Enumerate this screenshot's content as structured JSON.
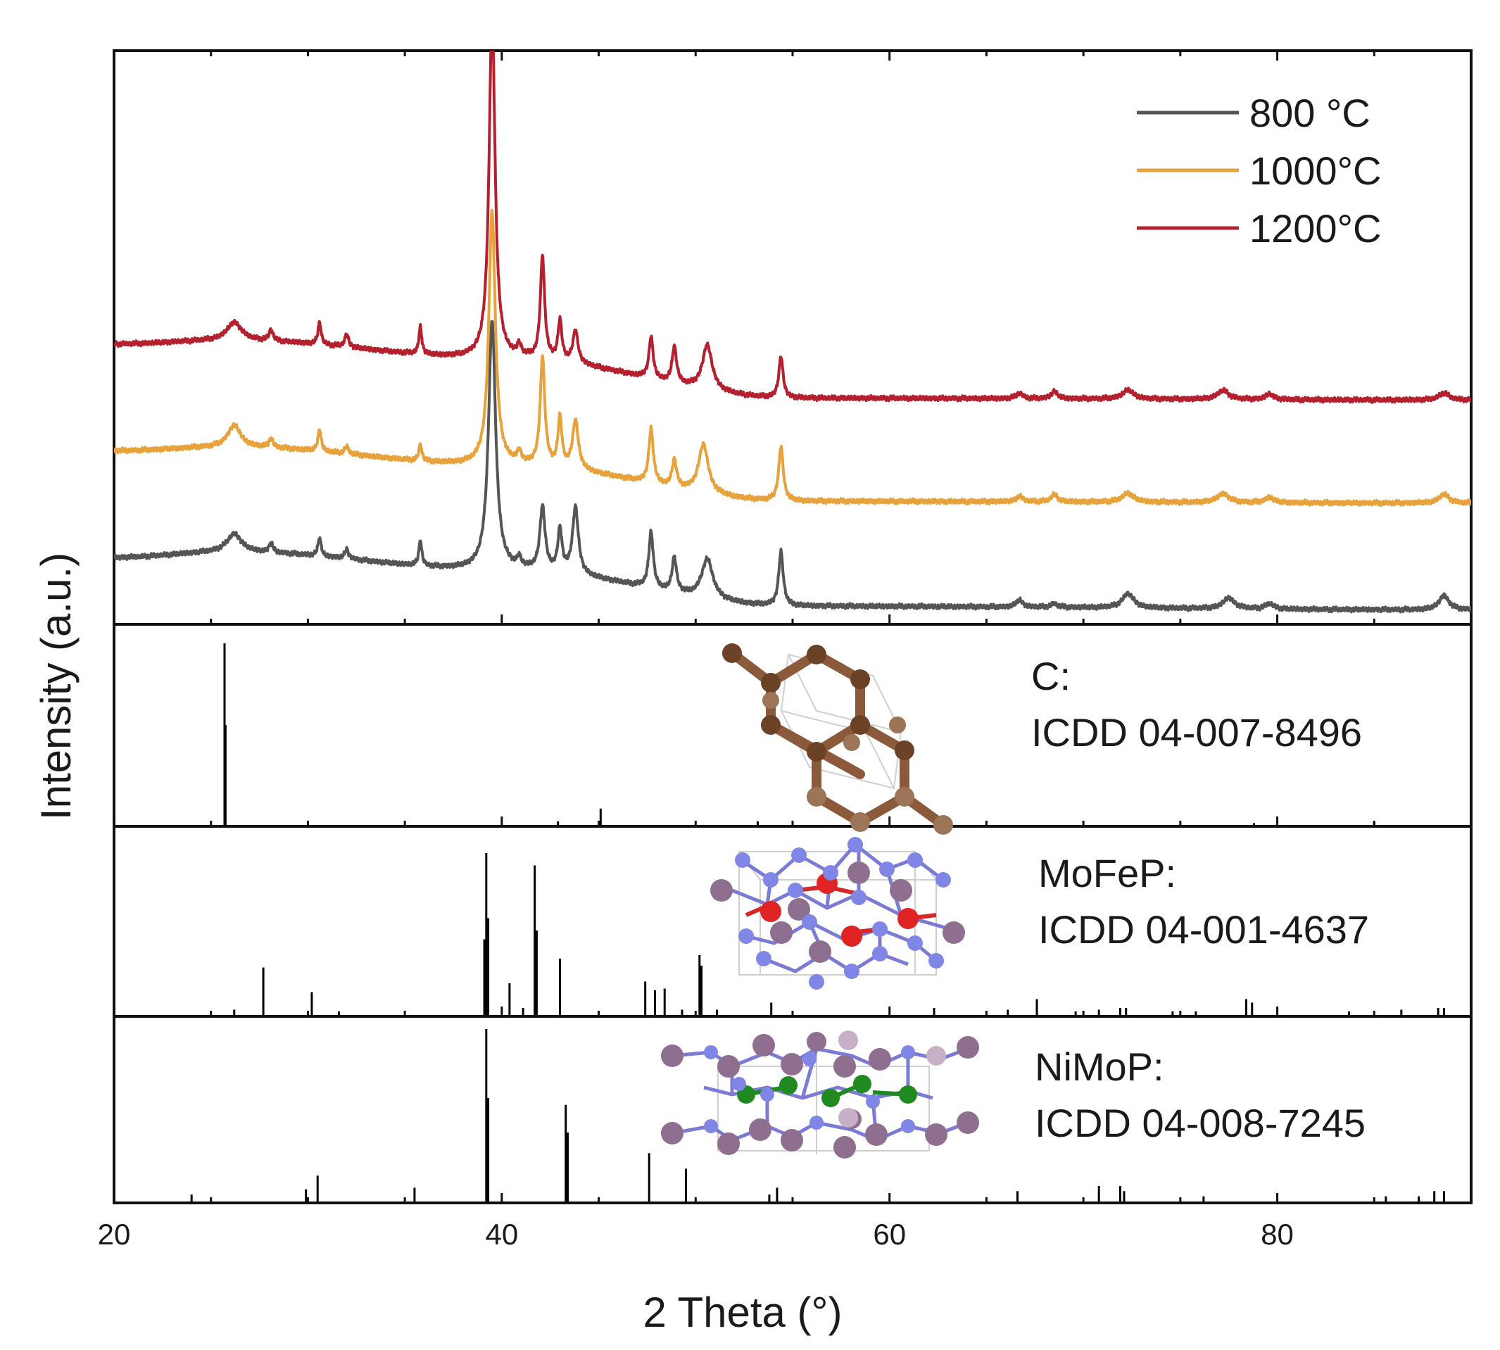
{
  "chart_data": {
    "type": "line",
    "xlabel": "2 Theta (°)",
    "ylabel": "Intensity (a.u.)",
    "xlim": [
      20,
      90
    ],
    "x_ticks": [
      20,
      40,
      60,
      80
    ],
    "x_tick_labels": [
      "20",
      "40",
      "60",
      "80"
    ],
    "legend": {
      "position": "top-right",
      "entries": [
        "800 °C",
        "1000°C",
        "1200°C"
      ]
    },
    "series": [
      {
        "name": "800 °C",
        "color": "#555555",
        "baseline": [
          [
            20,
            0.37
          ],
          [
            26,
            0.4
          ],
          [
            40,
            0.3
          ],
          [
            55,
            0.1
          ],
          [
            90,
            0.08
          ]
        ],
        "peaks": [
          [
            26.2,
            0.1,
            0.45
          ],
          [
            28.1,
            0.05,
            0.12
          ],
          [
            30.6,
            0.1,
            0.1
          ],
          [
            32,
            0.05,
            0.12
          ],
          [
            35.8,
            0.14,
            0.09
          ],
          [
            39.5,
            1.38,
            0.22
          ],
          [
            40.9,
            0.05,
            0.12
          ],
          [
            42.1,
            0.35,
            0.16
          ],
          [
            43.0,
            0.23,
            0.13
          ],
          [
            43.8,
            0.37,
            0.18
          ],
          [
            47.7,
            0.31,
            0.14
          ],
          [
            48.9,
            0.19,
            0.14
          ],
          [
            50.6,
            0.22,
            0.35
          ],
          [
            54.4,
            0.3,
            0.14
          ],
          [
            66.7,
            0.04,
            0.2
          ],
          [
            68.5,
            0.02,
            0.2
          ],
          [
            72.3,
            0.08,
            0.35
          ],
          [
            77.5,
            0.06,
            0.35
          ],
          [
            79.6,
            0.03,
            0.25
          ],
          [
            88.6,
            0.08,
            0.3
          ]
        ]
      },
      {
        "name": "1000°C",
        "color": "#E8A23B",
        "baseline": [
          [
            20,
            0.96
          ],
          [
            26,
            0.98
          ],
          [
            40,
            0.88
          ],
          [
            55,
            0.68
          ],
          [
            90,
            0.67
          ]
        ],
        "peaks": [
          [
            26.2,
            0.12,
            0.4
          ],
          [
            28.1,
            0.05,
            0.12
          ],
          [
            30.6,
            0.12,
            0.1
          ],
          [
            32,
            0.04,
            0.12
          ],
          [
            35.8,
            0.09,
            0.09
          ],
          [
            39.5,
            1.4,
            0.2
          ],
          [
            40.9,
            0.06,
            0.12
          ],
          [
            42.1,
            0.6,
            0.14
          ],
          [
            43.0,
            0.27,
            0.12
          ],
          [
            43.8,
            0.27,
            0.18
          ],
          [
            47.7,
            0.3,
            0.14
          ],
          [
            48.9,
            0.15,
            0.14
          ],
          [
            50.4,
            0.27,
            0.3
          ],
          [
            54.4,
            0.3,
            0.14
          ],
          [
            66.7,
            0.03,
            0.2
          ],
          [
            68.5,
            0.04,
            0.2
          ],
          [
            72.3,
            0.05,
            0.35
          ],
          [
            77.2,
            0.05,
            0.35
          ],
          [
            79.6,
            0.03,
            0.25
          ],
          [
            88.6,
            0.05,
            0.3
          ]
        ]
      },
      {
        "name": "1200°C",
        "color": "#B5202E",
        "baseline": [
          [
            20,
            1.55
          ],
          [
            26,
            1.57
          ],
          [
            40,
            1.47
          ],
          [
            55,
            1.25
          ],
          [
            90,
            1.24
          ]
        ],
        "peaks": [
          [
            26.2,
            0.1,
            0.45
          ],
          [
            28.1,
            0.06,
            0.12
          ],
          [
            30.6,
            0.12,
            0.1
          ],
          [
            32,
            0.07,
            0.12
          ],
          [
            35.8,
            0.15,
            0.09
          ],
          [
            39.5,
            1.94,
            0.18
          ],
          [
            40.9,
            0.06,
            0.12
          ],
          [
            42.1,
            0.57,
            0.13
          ],
          [
            43.0,
            0.22,
            0.12
          ],
          [
            43.8,
            0.18,
            0.16
          ],
          [
            47.7,
            0.23,
            0.13
          ],
          [
            48.9,
            0.2,
            0.14
          ],
          [
            50.6,
            0.25,
            0.3
          ],
          [
            54.4,
            0.23,
            0.13
          ],
          [
            66.7,
            0.03,
            0.2
          ],
          [
            68.5,
            0.04,
            0.2
          ],
          [
            72.3,
            0.05,
            0.35
          ],
          [
            77.2,
            0.05,
            0.35
          ],
          [
            79.6,
            0.03,
            0.25
          ],
          [
            88.6,
            0.04,
            0.3
          ]
        ]
      }
    ],
    "references": [
      {
        "name": "C",
        "label_line1": "C:",
        "label_line2": "ICDD 04-007-8496",
        "peaks": [
          [
            25.7,
            1.0
          ],
          [
            25.75,
            0.55
          ],
          [
            45.1,
            0.09
          ],
          [
            42.9,
            0.02
          ],
          [
            53.2,
            0.02
          ],
          [
            78.8,
            0.01
          ],
          [
            85.0,
            0.015
          ]
        ]
      },
      {
        "name": "MoFeP",
        "label_line1": "MoFeP:",
        "label_line2": "ICDD 04-001-4637",
        "peaks": [
          [
            26.2,
            0.03
          ],
          [
            27.7,
            0.27
          ],
          [
            30.2,
            0.13
          ],
          [
            31.6,
            0.02
          ],
          [
            39.1,
            0.43
          ],
          [
            39.2,
            0.92
          ],
          [
            39.3,
            0.55
          ],
          [
            40.4,
            0.18
          ],
          [
            41.1,
            0.04
          ],
          [
            41.7,
            0.85
          ],
          [
            41.8,
            0.48
          ],
          [
            43.0,
            0.32
          ],
          [
            47.4,
            0.19
          ],
          [
            47.9,
            0.14
          ],
          [
            48.4,
            0.15
          ],
          [
            49.3,
            0.03
          ],
          [
            50.2,
            0.34
          ],
          [
            50.3,
            0.28
          ],
          [
            51.1,
            0.03
          ],
          [
            53.9,
            0.07
          ],
          [
            62.3,
            0.04
          ],
          [
            66.1,
            0.03
          ],
          [
            67.6,
            0.09
          ],
          [
            69.6,
            0.02
          ],
          [
            70.8,
            0.03
          ],
          [
            71.9,
            0.04
          ],
          [
            72.2,
            0.04
          ],
          [
            74.6,
            0.02
          ],
          [
            75.8,
            0.02
          ],
          [
            78.4,
            0.09
          ],
          [
            78.7,
            0.07
          ],
          [
            83.7,
            0.02
          ],
          [
            86.4,
            0.03
          ],
          [
            88.3,
            0.04
          ],
          [
            88.6,
            0.04
          ]
        ]
      },
      {
        "name": "NiMoP",
        "label_line1": "NiMoP:",
        "label_line2": "ICDD 04-008-7245",
        "peaks": [
          [
            24.0,
            0.04
          ],
          [
            29.9,
            0.07
          ],
          [
            30.5,
            0.15
          ],
          [
            35.5,
            0.08
          ],
          [
            39.2,
            1.0
          ],
          [
            39.3,
            0.6
          ],
          [
            43.3,
            0.56
          ],
          [
            43.4,
            0.4
          ],
          [
            47.6,
            0.28
          ],
          [
            49.5,
            0.19
          ],
          [
            53.8,
            0.04
          ],
          [
            54.2,
            0.08
          ],
          [
            66.6,
            0.06
          ],
          [
            70.8,
            0.09
          ],
          [
            71.9,
            0.09
          ],
          [
            72.1,
            0.06
          ],
          [
            76.2,
            0.03
          ],
          [
            85.6,
            0.03
          ],
          [
            87.3,
            0.03
          ],
          [
            88.1,
            0.06
          ],
          [
            88.6,
            0.06
          ]
        ]
      }
    ]
  }
}
